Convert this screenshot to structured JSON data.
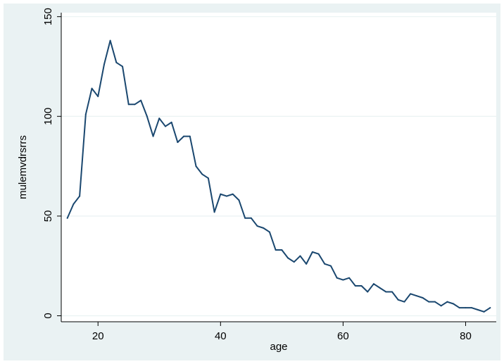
{
  "chart_data": {
    "type": "line",
    "title": "",
    "xlabel": "age",
    "ylabel": "mulemvdrsrrs",
    "xlim": [
      14,
      85
    ],
    "ylim": [
      -3,
      152
    ],
    "xticks": [
      20,
      40,
      60,
      80
    ],
    "yticks": [
      0,
      50,
      100,
      150
    ],
    "grid": true,
    "legend": "none",
    "colors": {
      "line": "#1a476f",
      "plot_bg": "#ffffff",
      "outer_bg": "#eaf2f3",
      "grid": "#eaf2f3",
      "axis": "#000000"
    },
    "series": [
      {
        "x": [
          15,
          16,
          17,
          18,
          19,
          20,
          21,
          22,
          23,
          24,
          25,
          26,
          27,
          28,
          29,
          30,
          31,
          32,
          33,
          34,
          35,
          36,
          37,
          38,
          39,
          40,
          41,
          42,
          43,
          44,
          45,
          46,
          47,
          48,
          49,
          50,
          51,
          52,
          53,
          54,
          55,
          56,
          57,
          58,
          59,
          60,
          61,
          62,
          63,
          64,
          65,
          66,
          67,
          68,
          69,
          70,
          71,
          72,
          73,
          74,
          75,
          76,
          77,
          78,
          79,
          80,
          81,
          82,
          83,
          84
        ],
        "values": [
          49,
          56,
          60,
          101,
          114,
          110,
          126,
          138,
          127,
          125,
          106,
          106,
          108,
          100,
          90,
          99,
          95,
          97,
          87,
          90,
          90,
          75,
          71,
          69,
          52,
          61,
          60,
          61,
          58,
          49,
          49,
          45,
          44,
          42,
          33,
          33,
          29,
          27,
          30,
          26,
          32,
          31,
          26,
          25,
          19,
          18,
          19,
          15,
          15,
          12,
          16,
          14,
          12,
          12,
          8,
          7,
          11,
          10,
          9,
          7,
          7,
          5,
          7,
          6,
          4,
          4,
          4,
          3,
          2,
          4
        ]
      }
    ]
  }
}
